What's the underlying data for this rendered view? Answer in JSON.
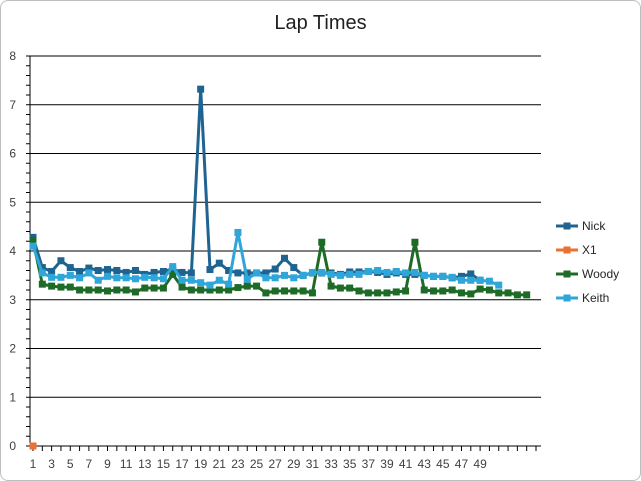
{
  "chart_data": {
    "type": "line",
    "title": "Lap Times",
    "ylim": [
      0,
      8
    ],
    "y_ticks": [
      "0",
      "1",
      "2",
      "3",
      "4",
      "5",
      "6",
      "7",
      "8"
    ],
    "x_range": [
      1,
      55
    ],
    "x_tick_labels": [
      "1",
      "3",
      "5",
      "7",
      "9",
      "11",
      "13",
      "15",
      "17",
      "19",
      "21",
      "23",
      "25",
      "27",
      "29",
      "31",
      "33",
      "35",
      "37",
      "39",
      "41",
      "43",
      "45",
      "47",
      "49"
    ],
    "x_tick_values": [
      1,
      3,
      5,
      7,
      9,
      11,
      13,
      15,
      17,
      19,
      21,
      23,
      25,
      27,
      29,
      31,
      33,
      35,
      37,
      39,
      41,
      43,
      45,
      47,
      49
    ],
    "grid": "horizontal",
    "legend_position": "right",
    "series": [
      {
        "name": "Nick",
        "color": "#1f6391",
        "values": [
          4.28,
          3.66,
          3.58,
          3.8,
          3.66,
          3.58,
          3.65,
          3.6,
          3.62,
          3.6,
          3.56,
          3.6,
          3.52,
          3.56,
          3.58,
          3.63,
          3.56,
          3.55,
          7.32,
          3.62,
          3.75,
          3.6,
          3.55,
          3.55,
          3.55,
          3.55,
          3.63,
          3.85,
          3.66,
          3.5,
          3.55,
          3.55,
          3.55,
          3.52,
          3.57,
          3.57,
          3.58,
          3.56,
          3.52,
          3.55,
          3.52,
          3.52,
          3.5,
          3.48,
          3.48,
          3.45,
          3.48,
          3.53,
          3.4
        ]
      },
      {
        "name": "X1",
        "color": "#e97132",
        "values": [
          0
        ]
      },
      {
        "name": "Woody",
        "color": "#1e6b28",
        "values": [
          4.22,
          3.32,
          3.28,
          3.26,
          3.26,
          3.2,
          3.2,
          3.2,
          3.18,
          3.2,
          3.2,
          3.16,
          3.24,
          3.24,
          3.24,
          3.52,
          3.26,
          3.2,
          3.2,
          3.2,
          3.2,
          3.2,
          3.25,
          3.28,
          3.28,
          3.14,
          3.18,
          3.18,
          3.18,
          3.18,
          3.14,
          4.18,
          3.28,
          3.24,
          3.24,
          3.18,
          3.14,
          3.14,
          3.14,
          3.16,
          3.18,
          4.18,
          3.2,
          3.18,
          3.18,
          3.2,
          3.14,
          3.12,
          3.22,
          3.2,
          3.14,
          3.14,
          3.1,
          3.1
        ]
      },
      {
        "name": "Keith",
        "color": "#2fa6d9",
        "values": [
          4.1,
          3.55,
          3.46,
          3.46,
          3.5,
          3.45,
          3.55,
          3.4,
          3.48,
          3.45,
          3.45,
          3.43,
          3.46,
          3.45,
          3.43,
          3.68,
          3.4,
          3.4,
          3.35,
          3.3,
          3.4,
          3.32,
          4.38,
          3.42,
          3.55,
          3.45,
          3.45,
          3.5,
          3.45,
          3.5,
          3.56,
          3.56,
          3.52,
          3.5,
          3.52,
          3.52,
          3.58,
          3.6,
          3.56,
          3.58,
          3.55,
          3.56,
          3.5,
          3.48,
          3.48,
          3.46,
          3.4,
          3.4,
          3.4,
          3.38,
          3.3
        ]
      }
    ]
  }
}
